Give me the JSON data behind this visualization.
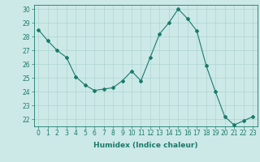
{
  "x": [
    0,
    1,
    2,
    3,
    4,
    5,
    6,
    7,
    8,
    9,
    10,
    11,
    12,
    13,
    14,
    15,
    16,
    17,
    18,
    19,
    20,
    21,
    22,
    23
  ],
  "y": [
    28.5,
    27.7,
    27.0,
    26.5,
    25.1,
    24.5,
    24.1,
    24.2,
    24.3,
    24.8,
    25.5,
    24.8,
    26.5,
    28.2,
    29.0,
    30.0,
    29.3,
    28.4,
    25.9,
    24.0,
    22.2,
    21.6,
    21.9,
    22.2
  ],
  "line_color": "#1a7a6a",
  "marker": "D",
  "marker_size": 2,
  "bg_color": "#cce9e7",
  "grid_color": "#aed4d1",
  "axis_color": "#1a7a6a",
  "xlabel": "Humidex (Indice chaleur)",
  "ylim_min": 21.5,
  "ylim_max": 30.3,
  "xlim_min": -0.5,
  "xlim_max": 23.5,
  "yticks": [
    22,
    23,
    24,
    25,
    26,
    27,
    28,
    29,
    30
  ],
  "xticks": [
    0,
    1,
    2,
    3,
    4,
    5,
    6,
    7,
    8,
    9,
    10,
    11,
    12,
    13,
    14,
    15,
    16,
    17,
    18,
    19,
    20,
    21,
    22,
    23
  ],
  "label_fontsize": 6.5,
  "tick_fontsize": 5.5
}
